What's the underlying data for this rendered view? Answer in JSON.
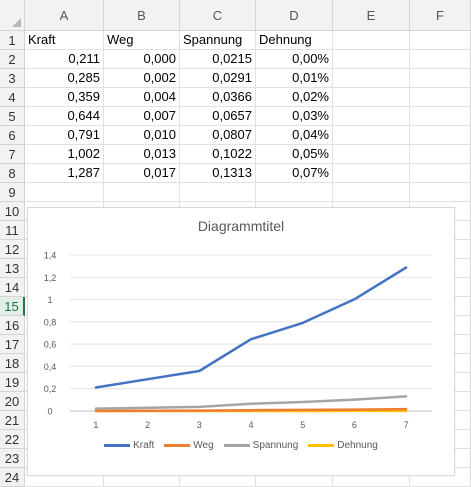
{
  "columns": [
    "A",
    "B",
    "C",
    "D",
    "E",
    "F"
  ],
  "rows": [
    "1",
    "2",
    "3",
    "4",
    "5",
    "6",
    "7",
    "8",
    "9",
    "10",
    "11",
    "12",
    "13",
    "14",
    "15",
    "16",
    "17",
    "18",
    "19",
    "20",
    "21",
    "22",
    "23",
    "24"
  ],
  "selected_row": "15",
  "headers": [
    "Kraft",
    "Weg",
    "Spannung",
    "Dehnung"
  ],
  "table": [
    [
      "0,211",
      "0,000",
      "0,0215",
      "0,00%"
    ],
    [
      "0,285",
      "0,002",
      "0,0291",
      "0,01%"
    ],
    [
      "0,359",
      "0,004",
      "0,0366",
      "0,02%"
    ],
    [
      "0,644",
      "0,007",
      "0,0657",
      "0,03%"
    ],
    [
      "0,791",
      "0,010",
      "0,0807",
      "0,04%"
    ],
    [
      "1,002",
      "0,013",
      "0,1022",
      "0,05%"
    ],
    [
      "1,287",
      "0,017",
      "0,1313",
      "0,07%"
    ]
  ],
  "chart_data": {
    "type": "line",
    "title": "Diagrammtitel",
    "categories": [
      "1",
      "2",
      "3",
      "4",
      "5",
      "6",
      "7"
    ],
    "y_ticks": [
      "0",
      "0,2",
      "0,4",
      "0,6",
      "0,8",
      "1",
      "1,2",
      "1,4"
    ],
    "ylim": [
      0,
      1.4
    ],
    "grid": true,
    "legend_position": "bottom",
    "series": [
      {
        "name": "Kraft",
        "color": "#4472c4",
        "values": [
          0.211,
          0.285,
          0.359,
          0.644,
          0.791,
          1.002,
          1.287
        ]
      },
      {
        "name": "Weg",
        "color": "#ed7d31",
        "values": [
          0.0,
          0.002,
          0.004,
          0.007,
          0.01,
          0.013,
          0.017
        ]
      },
      {
        "name": "Spannung",
        "color": "#a5a5a5",
        "values": [
          0.0215,
          0.0291,
          0.0366,
          0.0657,
          0.0807,
          0.1022,
          0.1313
        ]
      },
      {
        "name": "Dehnung",
        "color": "#ffc000",
        "values": [
          0.0,
          0.0001,
          0.0002,
          0.0003,
          0.0004,
          0.0005,
          0.0007
        ]
      }
    ]
  }
}
